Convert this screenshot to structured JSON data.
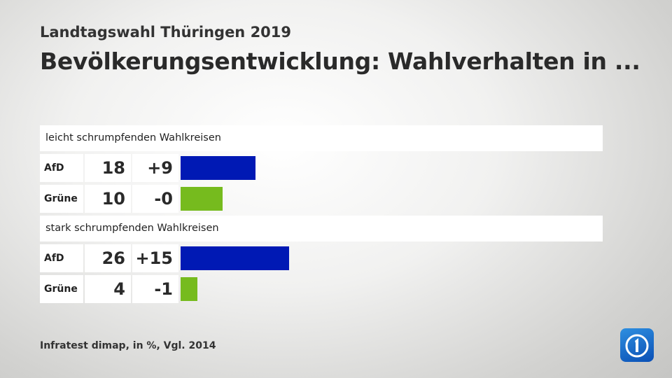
{
  "header": {
    "subtitle": "Landtagswahl Thüringen 2019",
    "title": "Bevölkerungsentwicklung: Wahlverhalten in ..."
  },
  "colors": {
    "AfD": "#0019b4",
    "Grüne": "#76bb1e"
  },
  "chart_data": {
    "type": "bar",
    "title": "Bevölkerungsentwicklung: Wahlverhalten in ...",
    "unit": "%",
    "groups": [
      {
        "label": "leicht schrumpfenden Wahlkreisen",
        "rows": [
          {
            "party": "AfD",
            "value": 18,
            "diff": "+9"
          },
          {
            "party": "Grüne",
            "value": 10,
            "diff": "-0"
          }
        ]
      },
      {
        "label": "stark schrumpfenden Wahlkreisen",
        "rows": [
          {
            "party": "AfD",
            "value": 26,
            "diff": "+15"
          },
          {
            "party": "Grüne",
            "value": 4,
            "diff": "-1"
          }
        ]
      }
    ]
  },
  "footer": {
    "source": "Infratest dimap, in %, Vgl. 2014"
  },
  "logo": {
    "icon": "ard-das-erste-logo"
  }
}
